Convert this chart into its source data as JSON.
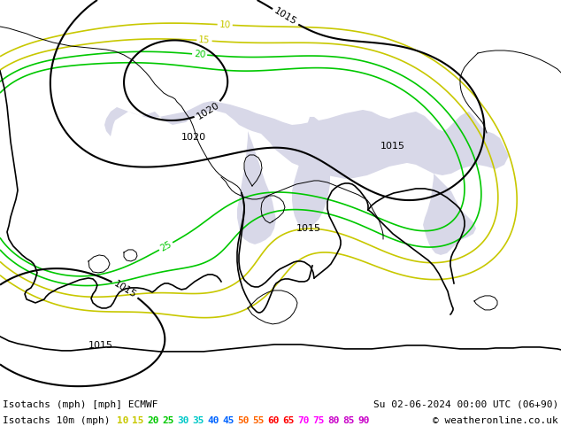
{
  "title_left": "Isotachs (mph) [mph] ECMWF",
  "title_right": "Su 02-06-2024 00:00 UTC (06+90)",
  "legend_title": "Isotachs 10m (mph)",
  "legend_values": [
    10,
    15,
    20,
    25,
    30,
    35,
    40,
    45,
    50,
    55,
    60,
    65,
    70,
    75,
    80,
    85,
    90
  ],
  "legend_colors": [
    "#c8c800",
    "#c8c800",
    "#00c800",
    "#00c800",
    "#00c8c8",
    "#00c8c8",
    "#0064ff",
    "#0064ff",
    "#ff6400",
    "#ff6400",
    "#ff0000",
    "#ff0000",
    "#ff00ff",
    "#ff00ff",
    "#c800c8",
    "#c800c8",
    "#c800c8"
  ],
  "copyright_text": "© weatheronline.co.uk",
  "land_color": "#c8f0c8",
  "sea_color": "#d8d8e8",
  "coastline_color": "#000000",
  "pressure_color": "#000000",
  "iso_colors": {
    "10": "#c8c800",
    "15": "#c8c800",
    "20": "#00c800",
    "25": "#00c800",
    "30": "#00c8c8"
  },
  "figure_width": 6.34,
  "figure_height": 4.9,
  "dpi": 100
}
